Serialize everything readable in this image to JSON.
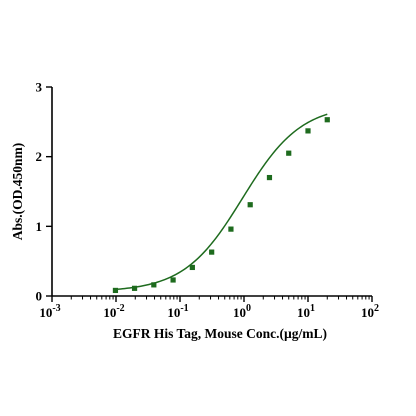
{
  "chart_data": {
    "type": "scatter",
    "title": "",
    "xlabel": "EGFR His Tag, Mouse Conc.(µg/mL)",
    "ylabel": "Abs.(OD.450nm)",
    "xscale": "log",
    "xlim": [
      0.001,
      100
    ],
    "ylim": [
      0,
      3
    ],
    "x_ticks": [
      {
        "base": "10",
        "exp": "-3",
        "value": 0.001
      },
      {
        "base": "10",
        "exp": "-2",
        "value": 0.01
      },
      {
        "base": "10",
        "exp": "-1",
        "value": 0.1
      },
      {
        "base": "10",
        "exp": "0",
        "value": 1
      },
      {
        "base": "10",
        "exp": "1",
        "value": 10
      },
      {
        "base": "10",
        "exp": "2",
        "value": 100
      }
    ],
    "y_ticks": [
      {
        "label": "0",
        "value": 0
      },
      {
        "label": "1",
        "value": 1
      },
      {
        "label": "2",
        "value": 2
      },
      {
        "label": "3",
        "value": 3
      }
    ],
    "grid": false,
    "series": [
      {
        "color": "#1e6b1e",
        "marker": "square",
        "x": [
          0.0098,
          0.0195,
          0.039,
          0.078,
          0.156,
          0.3125,
          0.625,
          1.25,
          2.5,
          5,
          10,
          20
        ],
        "y": [
          0.08,
          0.11,
          0.16,
          0.23,
          0.41,
          0.63,
          0.96,
          1.31,
          1.7,
          2.05,
          2.37,
          2.53
        ],
        "fit": {
          "bottom": 0.06,
          "top": 2.75,
          "ec50": 0.95,
          "hill": 0.95
        }
      }
    ]
  }
}
